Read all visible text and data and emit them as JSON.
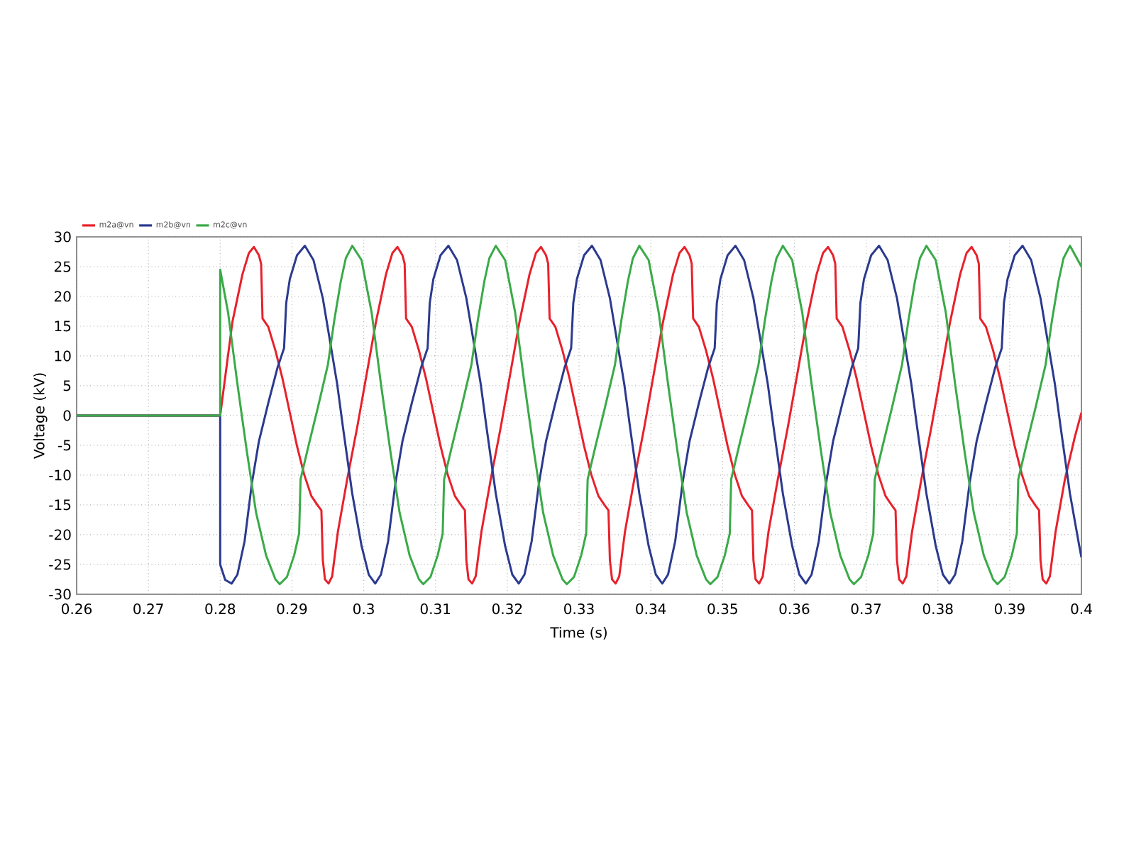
{
  "chart_data": {
    "type": "line",
    "xlabel": "Time (s)",
    "ylabel": "Voltage (kV)",
    "xlim": [
      0.26,
      0.4
    ],
    "ylim": [
      -30,
      30
    ],
    "xticks": [
      0.26,
      0.27,
      0.28,
      0.29,
      0.3,
      0.31,
      0.32,
      0.33,
      0.34,
      0.35,
      0.36,
      0.37,
      0.38,
      0.39,
      0.4
    ],
    "yticks": [
      -30,
      -25,
      -20,
      -15,
      -10,
      -5,
      0,
      5,
      10,
      15,
      20,
      25,
      30
    ],
    "grid": true,
    "legend": "top left",
    "series": [
      {
        "name": "m2a@vn",
        "color": "#e8212b",
        "x": [
          0.26,
          0.28,
          0.2817,
          0.2831,
          0.284,
          0.2847,
          0.2854,
          0.2857,
          0.2859,
          0.2867,
          0.2877,
          0.2887,
          0.2897,
          0.2907,
          0.2917,
          0.2927,
          0.2936,
          0.2941,
          0.2943,
          0.2946,
          0.2951,
          0.2956,
          0.2964,
          0.2977,
          0.2991,
          0.3004,
          0.3017,
          0.3031,
          0.304,
          0.3047,
          0.3054,
          0.3057,
          0.3059,
          0.3067,
          0.3077,
          0.3087,
          0.3097,
          0.3107,
          0.3117,
          0.3127,
          0.3136,
          0.3141,
          0.3143,
          0.3146,
          0.3151,
          0.3156,
          0.3164,
          0.3177,
          0.3191,
          0.3204,
          0.3217,
          0.3231,
          0.324,
          0.3247,
          0.3254,
          0.3257,
          0.3259,
          0.3267,
          0.3277,
          0.3287,
          0.3297,
          0.3307,
          0.3317,
          0.3327,
          0.3336,
          0.3341,
          0.3343,
          0.3346,
          0.3351,
          0.3356,
          0.3364,
          0.3377,
          0.3391,
          0.3404,
          0.3417,
          0.3431,
          0.344,
          0.3447,
          0.3454,
          0.3457,
          0.3459,
          0.3467,
          0.3477,
          0.3487,
          0.3497,
          0.3507,
          0.3517,
          0.3527,
          0.3536,
          0.3541,
          0.3543,
          0.3546,
          0.3551,
          0.3556,
          0.3564,
          0.3577,
          0.3591,
          0.3604,
          0.3617,
          0.3631,
          0.364,
          0.3647,
          0.3654,
          0.3657,
          0.3659,
          0.3667,
          0.3677,
          0.3687,
          0.3697,
          0.3707,
          0.3717,
          0.3727,
          0.3736,
          0.3741,
          0.3743,
          0.3746,
          0.3751,
          0.3756,
          0.3764,
          0.3777,
          0.3791,
          0.3804,
          0.3817,
          0.3831,
          0.384,
          0.3847,
          0.3854,
          0.3857,
          0.3859,
          0.3867,
          0.3877,
          0.3887,
          0.3897,
          0.3907,
          0.3917,
          0.3927,
          0.3936,
          0.3941,
          0.3943,
          0.3946,
          0.3951,
          0.3956,
          0.3964,
          0.3977,
          0.3991,
          0.4
        ],
        "values": [
          0,
          0,
          15.7,
          23.7,
          27.3,
          28.3,
          26.9,
          25.5,
          16.3,
          14.9,
          10.9,
          6.1,
          0.5,
          -5.1,
          -9.9,
          -13.5,
          -15.1,
          -15.9,
          -24.3,
          -27.5,
          -28.2,
          -27.0,
          -19.5,
          -10.7,
          -1.9,
          6.9,
          15.7,
          23.7,
          27.3,
          28.3,
          26.9,
          25.5,
          16.3,
          14.9,
          10.9,
          6.1,
          0.5,
          -5.1,
          -9.9,
          -13.5,
          -15.1,
          -15.9,
          -24.3,
          -27.5,
          -28.2,
          -27.0,
          -19.5,
          -10.7,
          -1.9,
          6.9,
          15.7,
          23.7,
          27.3,
          28.3,
          26.9,
          25.5,
          16.3,
          14.9,
          10.9,
          6.1,
          0.5,
          -5.1,
          -9.9,
          -13.5,
          -15.1,
          -15.9,
          -24.3,
          -27.5,
          -28.2,
          -27.0,
          -19.5,
          -10.7,
          -1.9,
          6.9,
          15.7,
          23.7,
          27.3,
          28.3,
          26.9,
          25.5,
          16.3,
          14.9,
          10.9,
          6.1,
          0.5,
          -5.1,
          -9.9,
          -13.5,
          -15.1,
          -15.9,
          -24.3,
          -27.5,
          -28.2,
          -27.0,
          -19.5,
          -10.7,
          -1.9,
          6.9,
          15.7,
          23.7,
          27.3,
          28.3,
          26.9,
          25.5,
          16.3,
          14.9,
          10.9,
          6.1,
          0.5,
          -5.1,
          -9.9,
          -13.5,
          -15.1,
          -15.9,
          -24.3,
          -27.5,
          -28.2,
          -27.0,
          -19.5,
          -10.7,
          -1.9,
          6.9,
          15.7,
          23.7,
          27.3,
          28.3,
          26.9,
          25.5,
          16.3,
          14.9,
          10.9,
          6.1,
          0.5,
          -5.1,
          -9.9,
          -13.5,
          -15.1,
          -15.9,
          -24.3,
          -27.5,
          -28.2,
          -27.0,
          -19.5,
          -10.7,
          -3.5,
          0.5
        ]
      },
      {
        "name": "m2b@vn",
        "color": "#2b3a8f",
        "x": [
          0.26,
          0.28,
          0.28,
          0.2807,
          0.2816,
          0.2824,
          0.2834,
          0.2844,
          0.2854,
          0.2867,
          0.288,
          0.2889,
          0.2892,
          0.2897,
          0.2907,
          0.2918,
          0.293,
          0.2943,
          0.2953,
          0.2963,
          0.2971,
          0.2984,
          0.2997,
          0.3007,
          0.3016,
          0.3024,
          0.3034,
          0.3044,
          0.3054,
          0.3067,
          0.308,
          0.3089,
          0.3092,
          0.3097,
          0.3107,
          0.3118,
          0.313,
          0.3143,
          0.3153,
          0.3163,
          0.3171,
          0.3184,
          0.3197,
          0.3207,
          0.3216,
          0.3224,
          0.3234,
          0.3244,
          0.3254,
          0.3267,
          0.328,
          0.3289,
          0.3292,
          0.3297,
          0.3307,
          0.3318,
          0.333,
          0.3343,
          0.3353,
          0.3363,
          0.3371,
          0.3384,
          0.3397,
          0.3407,
          0.3416,
          0.3424,
          0.3434,
          0.3444,
          0.3454,
          0.3467,
          0.348,
          0.3489,
          0.3492,
          0.3497,
          0.3507,
          0.3518,
          0.353,
          0.3543,
          0.3553,
          0.3563,
          0.3571,
          0.3584,
          0.3597,
          0.3607,
          0.3616,
          0.3624,
          0.3634,
          0.3644,
          0.3654,
          0.3667,
          0.368,
          0.3689,
          0.3692,
          0.3697,
          0.3707,
          0.3718,
          0.373,
          0.3743,
          0.3753,
          0.3763,
          0.3771,
          0.3784,
          0.3797,
          0.3807,
          0.3816,
          0.3824,
          0.3834,
          0.3844,
          0.3854,
          0.3867,
          0.388,
          0.3889,
          0.3892,
          0.3897,
          0.3907,
          0.3918,
          0.393,
          0.3943,
          0.3953,
          0.3963,
          0.3971,
          0.3984,
          0.3997,
          0.4
        ],
        "values": [
          0,
          0,
          -25,
          -27.6,
          -28.2,
          -26.7,
          -21.1,
          -11.5,
          -4.3,
          2.1,
          8.1,
          11.3,
          18.9,
          22.9,
          26.9,
          28.5,
          26.1,
          19.7,
          12.5,
          5.3,
          -1.9,
          -13.1,
          -21.9,
          -26.7,
          -28.2,
          -26.7,
          -21.1,
          -11.5,
          -4.3,
          2.1,
          8.1,
          11.3,
          18.9,
          22.9,
          26.9,
          28.5,
          26.1,
          19.7,
          12.5,
          5.3,
          -1.9,
          -13.1,
          -21.9,
          -26.7,
          -28.2,
          -26.7,
          -21.1,
          -11.5,
          -4.3,
          2.1,
          8.1,
          11.3,
          18.9,
          22.9,
          26.9,
          28.5,
          26.1,
          19.7,
          12.5,
          5.3,
          -1.9,
          -13.1,
          -21.9,
          -26.7,
          -28.2,
          -26.7,
          -21.1,
          -11.5,
          -4.3,
          2.1,
          8.1,
          11.3,
          18.9,
          22.9,
          26.9,
          28.5,
          26.1,
          19.7,
          12.5,
          5.3,
          -1.9,
          -13.1,
          -21.9,
          -26.7,
          -28.2,
          -26.7,
          -21.1,
          -11.5,
          -4.3,
          2.1,
          8.1,
          11.3,
          18.9,
          22.9,
          26.9,
          28.5,
          26.1,
          19.7,
          12.5,
          5.3,
          -1.9,
          -13.1,
          -21.9,
          -26.7,
          -28.2,
          -26.7,
          -21.1,
          -11.5,
          -4.3,
          2.1,
          8.1,
          11.3,
          18.9,
          22.9,
          26.9,
          28.5,
          26.1,
          19.7,
          12.5,
          5.3,
          -1.9,
          -13.1,
          -21.9,
          -23.8
        ]
      },
      {
        "name": "m2c@vn",
        "color": "#3aaa48",
        "x": [
          0.26,
          0.28,
          0.28,
          0.2811,
          0.2824,
          0.2837,
          0.285,
          0.2864,
          0.2877,
          0.2883,
          0.2893,
          0.2903,
          0.291,
          0.2912,
          0.2923,
          0.2936,
          0.295,
          0.2959,
          0.2968,
          0.2975,
          0.2984,
          0.2997,
          0.3011,
          0.3024,
          0.3037,
          0.305,
          0.3064,
          0.3077,
          0.3083,
          0.3093,
          0.3103,
          0.311,
          0.3112,
          0.3123,
          0.3136,
          0.315,
          0.3159,
          0.3168,
          0.3175,
          0.3184,
          0.3197,
          0.3211,
          0.3224,
          0.3237,
          0.325,
          0.3264,
          0.3277,
          0.3283,
          0.3293,
          0.3303,
          0.331,
          0.3312,
          0.3323,
          0.3336,
          0.335,
          0.3359,
          0.3368,
          0.3375,
          0.3384,
          0.3397,
          0.3411,
          0.3424,
          0.3437,
          0.345,
          0.3464,
          0.3477,
          0.3483,
          0.3493,
          0.3503,
          0.351,
          0.3512,
          0.3523,
          0.3536,
          0.355,
          0.3559,
          0.3568,
          0.3575,
          0.3584,
          0.3597,
          0.3611,
          0.3624,
          0.3637,
          0.365,
          0.3664,
          0.3677,
          0.3683,
          0.3693,
          0.3703,
          0.371,
          0.3712,
          0.3723,
          0.3736,
          0.375,
          0.3759,
          0.3768,
          0.3775,
          0.3784,
          0.3797,
          0.3811,
          0.3824,
          0.3837,
          0.385,
          0.3864,
          0.3877,
          0.3883,
          0.3893,
          0.3903,
          0.391,
          0.3912,
          0.3923,
          0.3936,
          0.395,
          0.3959,
          0.3968,
          0.3975,
          0.3984,
          0.4
        ],
        "values": [
          0,
          0,
          24.5,
          17.3,
          5.3,
          -5.9,
          -16.3,
          -23.5,
          -27.5,
          -28.3,
          -27.1,
          -23.5,
          -19.8,
          -10.7,
          -5.1,
          1.3,
          8.5,
          16.0,
          22.5,
          26.4,
          28.5,
          26.1,
          17.3,
          5.3,
          -5.9,
          -16.3,
          -23.5,
          -27.5,
          -28.3,
          -27.1,
          -23.5,
          -19.8,
          -10.7,
          -5.1,
          1.3,
          8.5,
          16.0,
          22.5,
          26.4,
          28.5,
          26.1,
          17.3,
          5.3,
          -5.9,
          -16.3,
          -23.5,
          -27.5,
          -28.3,
          -27.1,
          -23.5,
          -19.8,
          -10.7,
          -5.1,
          1.3,
          8.5,
          16.0,
          22.5,
          26.4,
          28.5,
          26.1,
          17.3,
          5.3,
          -5.9,
          -16.3,
          -23.5,
          -27.5,
          -28.3,
          -27.1,
          -23.5,
          -19.8,
          -10.7,
          -5.1,
          1.3,
          8.5,
          16.0,
          22.5,
          26.4,
          28.5,
          26.1,
          17.3,
          5.3,
          -5.9,
          -16.3,
          -23.5,
          -27.5,
          -28.3,
          -27.1,
          -23.5,
          -19.8,
          -10.7,
          -5.1,
          1.3,
          8.5,
          16.0,
          22.5,
          26.4,
          28.5,
          26.1,
          17.3,
          5.3,
          -5.9,
          -16.3,
          -23.5,
          -27.5,
          -28.3,
          -27.1,
          -23.5,
          -19.8,
          -10.7,
          -5.1,
          1.3,
          8.5,
          16.0,
          22.5,
          26.4,
          28.5,
          25
        ]
      }
    ]
  }
}
